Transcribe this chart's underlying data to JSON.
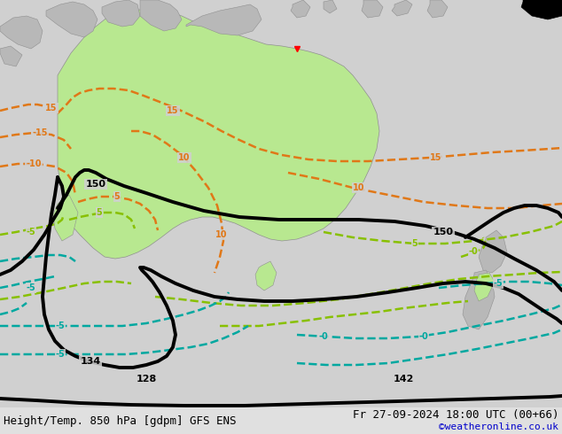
{
  "title_left": "Height/Temp. 850 hPa [gdpm] GFS ENS",
  "title_right": "Fr 27-09-2024 18:00 UTC (00+66)",
  "copyright": "©weatheronline.co.uk",
  "bg_color": "#d0d0d0",
  "land_gray": "#b8b8b8",
  "aus_green": "#b8e890",
  "title_fontsize": 9,
  "copyright_color": "#0000cc",
  "bottom_bar_color": "#e0e0e0",
  "orange": "#e07818",
  "green_yel": "#88c000",
  "cyan_col": "#00a8a0",
  "black": "#000000"
}
